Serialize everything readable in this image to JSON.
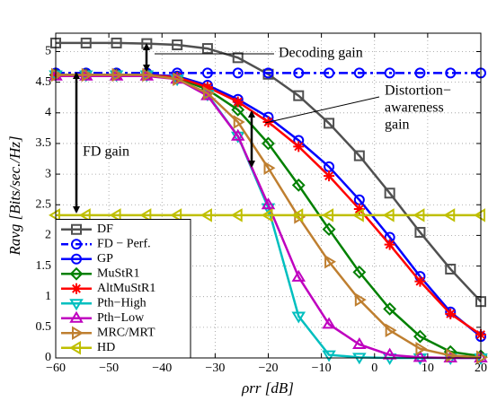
{
  "chart_data": {
    "type": "line",
    "xlabel": "ρrr [dB]",
    "ylabel": "Ravg [Bits/sec./Hz]",
    "x": [
      -60,
      -54.29,
      -48.57,
      -42.86,
      -37.14,
      -31.43,
      -25.71,
      -20,
      -14.29,
      -8.57,
      -2.86,
      2.86,
      8.57,
      14.29,
      20
    ],
    "xlim": [
      -60,
      20
    ],
    "xticks": [
      {
        "value": -60,
        "label": "−60"
      },
      {
        "value": -50,
        "label": "−50"
      },
      {
        "value": -40,
        "label": "−40"
      },
      {
        "value": -30,
        "label": "−30"
      },
      {
        "value": -20,
        "label": "−20"
      },
      {
        "value": -10,
        "label": "−10"
      },
      0,
      10,
      20
    ],
    "ylim": [
      0,
      5.3
    ],
    "yticks": [
      0,
      0.5,
      1,
      1.5,
      2,
      2.5,
      3,
      3.5,
      4,
      4.5,
      5
    ],
    "grid": true,
    "legend": "lower left",
    "series": [
      {
        "name": "DF",
        "color": "#505050",
        "marker": "square",
        "dash": false,
        "values": [
          5.14,
          5.14,
          5.14,
          5.13,
          5.11,
          5.05,
          4.9,
          4.63,
          4.28,
          3.83,
          3.3,
          2.69,
          2.05,
          1.45,
          0.92
        ]
      },
      {
        "name": "FD − Perf.",
        "color": "#0000ff",
        "marker": "circle",
        "dash": true,
        "values": [
          4.65,
          4.65,
          4.65,
          4.65,
          4.65,
          4.65,
          4.65,
          4.65,
          4.65,
          4.65,
          4.65,
          4.65,
          4.65,
          4.65,
          4.65
        ]
      },
      {
        "name": "GP",
        "color": "#0000ff",
        "marker": "circle",
        "dash": false,
        "values": [
          4.62,
          4.62,
          4.62,
          4.62,
          4.6,
          4.45,
          4.22,
          3.93,
          3.55,
          3.12,
          2.58,
          1.97,
          1.33,
          0.75,
          0.35
        ]
      },
      {
        "name": "MuStR1",
        "color": "#008000",
        "marker": "diamond",
        "dash": false,
        "values": [
          4.62,
          4.62,
          4.62,
          4.62,
          4.57,
          4.38,
          4.05,
          3.5,
          2.82,
          2.1,
          1.4,
          0.8,
          0.35,
          0.1,
          0.03
        ]
      },
      {
        "name": "AltMuStR1",
        "color": "#ff0000",
        "marker": "star",
        "dash": false,
        "values": [
          4.62,
          4.62,
          4.62,
          4.62,
          4.58,
          4.42,
          4.18,
          3.85,
          3.45,
          2.97,
          2.43,
          1.85,
          1.25,
          0.72,
          0.38
        ]
      },
      {
        "name": "Pth−High",
        "color": "#00bfbf",
        "marker": "tri-down",
        "dash": false,
        "values": [
          4.62,
          4.62,
          4.62,
          4.62,
          4.55,
          4.3,
          3.62,
          2.45,
          0.68,
          0.05,
          0.01,
          0,
          0,
          0,
          0
        ]
      },
      {
        "name": "Pth−Low",
        "color": "#bf00bf",
        "marker": "tri-up",
        "dash": false,
        "values": [
          4.6,
          4.6,
          4.6,
          4.6,
          4.55,
          4.28,
          3.62,
          2.5,
          1.32,
          0.55,
          0.22,
          0.05,
          0.01,
          0,
          0
        ]
      },
      {
        "name": "MRC/MRT",
        "color": "#bf7f30",
        "marker": "tri-right",
        "dash": false,
        "values": [
          4.62,
          4.62,
          4.62,
          4.62,
          4.55,
          4.32,
          3.85,
          3.1,
          2.3,
          1.57,
          0.95,
          0.45,
          0.15,
          0.04,
          0.01
        ]
      },
      {
        "name": "HD",
        "color": "#bfbf00",
        "marker": "tri-left",
        "dash": false,
        "values": [
          2.33,
          2.33,
          2.33,
          2.33,
          2.33,
          2.33,
          2.33,
          2.33,
          2.33,
          2.33,
          2.33,
          2.33,
          2.33,
          2.33,
          2.33
        ]
      }
    ],
    "annotations": {
      "decoding": "Decoding gain",
      "distortion": [
        "Distortion−",
        "awareness",
        "gain"
      ],
      "fd": "FD gain"
    }
  }
}
